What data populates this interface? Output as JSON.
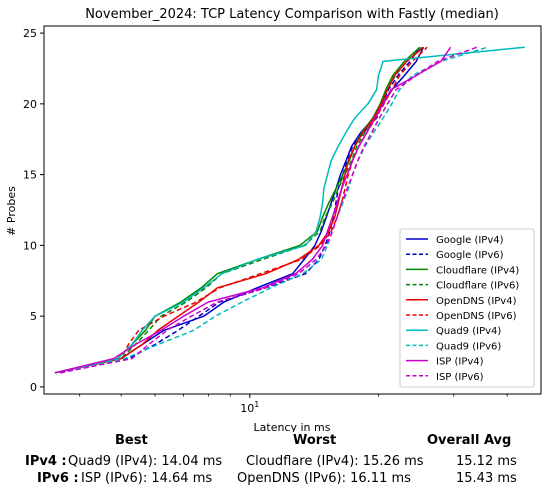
{
  "chart_data": {
    "type": "line",
    "title": "November_2024: TCP Latency Comparison with Fastly (median)",
    "xlabel": "Latency in ms",
    "ylabel": "# Probes",
    "xscale": "log",
    "xlim": [
      3.3,
      48
    ],
    "ylim": [
      -0.5,
      25.5
    ],
    "yticks": [
      0,
      5,
      10,
      15,
      20,
      25
    ],
    "xticks": [
      {
        "value": 10,
        "label": "10^1"
      }
    ],
    "legend_position": "lower right",
    "series": [
      {
        "name": "Google (IPv4)",
        "color": "#0000cc",
        "dash": false,
        "x": [
          3.5,
          5.0,
          5.6,
          6.3,
          7.8,
          8.7,
          10.4,
          12.6,
          13.4,
          14.2,
          14.7,
          15.1,
          15.5,
          15.9,
          16.3,
          16.8,
          17.3,
          18.2,
          19.5,
          20.5,
          21.5,
          23.0,
          24.5,
          25.5
        ],
        "y": [
          1,
          2,
          3,
          4,
          5,
          6,
          7,
          8,
          9,
          10,
          11,
          12,
          13,
          14,
          15,
          16,
          17,
          18,
          19,
          20,
          21,
          22,
          23,
          24
        ]
      },
      {
        "name": "Google (IPv6)",
        "color": "#0000cc",
        "dash": true,
        "x": [
          3.6,
          5.2,
          6.0,
          6.8,
          7.6,
          8.5,
          10.9,
          13.5,
          14.5,
          15.0,
          15.4,
          15.7,
          15.9,
          16.1,
          16.5,
          16.9,
          17.4,
          18.5,
          19.8,
          20.4,
          21.1,
          22.2,
          23.7,
          25.0
        ],
        "y": [
          1,
          2,
          3,
          4,
          5,
          6,
          7,
          8,
          9,
          10,
          11,
          12,
          13,
          14,
          15,
          16,
          17,
          18,
          19,
          20,
          21,
          22,
          23,
          24
        ]
      },
      {
        "name": "Cloudflare (IPv4)",
        "color": "#008800",
        "dash": false,
        "x": [
          3.5,
          4.9,
          5.3,
          5.7,
          6.0,
          6.9,
          7.7,
          8.4,
          10.4,
          13.1,
          14.4,
          14.8,
          15.3,
          15.9,
          16.5,
          17.1,
          17.6,
          18.3,
          19.4,
          20.2,
          20.8,
          21.6,
          23.0,
          25.0
        ],
        "y": [
          1,
          2,
          3,
          4,
          5,
          6,
          7,
          8,
          9,
          10,
          11,
          12,
          13,
          14,
          15,
          16,
          17,
          18,
          19,
          20,
          21,
          22,
          23,
          24
        ]
      },
      {
        "name": "Cloudflare (IPv6)",
        "color": "#008800",
        "dash": true,
        "x": [
          3.6,
          5.0,
          5.4,
          5.8,
          6.2,
          7.1,
          7.9,
          8.6,
          10.7,
          13.4,
          14.6,
          15.0,
          15.6,
          16.1,
          16.7,
          17.3,
          17.8,
          18.6,
          19.7,
          20.4,
          21.0,
          21.9,
          23.3,
          25.3
        ],
        "y": [
          1,
          2,
          3,
          4,
          5,
          6,
          7,
          8,
          9,
          10,
          11,
          12,
          13,
          14,
          15,
          16,
          17,
          18,
          19,
          20,
          21,
          22,
          23,
          24
        ]
      },
      {
        "name": "OpenDNS (IPv4)",
        "color": "#ee0000",
        "dash": false,
        "x": [
          3.5,
          5.0,
          5.6,
          6.1,
          6.8,
          7.6,
          8.4,
          10.9,
          13.0,
          14.5,
          15.3,
          15.8,
          16.1,
          16.4,
          16.7,
          17.0,
          17.6,
          18.4,
          19.5,
          20.3,
          21.0,
          21.8,
          23.3,
          25.5
        ],
        "y": [
          1,
          2,
          3,
          4,
          5,
          6,
          7,
          8,
          9,
          10,
          11,
          12,
          13,
          14,
          15,
          16,
          17,
          18,
          19,
          20,
          21,
          22,
          23,
          24
        ]
      },
      {
        "name": "OpenDNS (IPv6)",
        "color": "#ee0000",
        "dash": true,
        "x": [
          3.5,
          5.0,
          5.2,
          5.5,
          6.3,
          7.5,
          8.5,
          10.6,
          13.2,
          14.6,
          15.5,
          16.0,
          16.4,
          16.7,
          17.0,
          17.4,
          18.0,
          18.8,
          19.7,
          20.6,
          21.5,
          22.4,
          24.0,
          26.0
        ],
        "y": [
          1,
          2,
          3,
          4,
          5,
          6,
          7,
          8,
          9,
          10,
          11,
          12,
          13,
          14,
          15,
          16,
          17,
          18,
          19,
          20,
          21,
          22,
          23,
          24
        ]
      },
      {
        "name": "Quad9 (IPv4)",
        "color": "#00bbbb",
        "dash": false,
        "x": [
          3.5,
          4.9,
          5.3,
          5.6,
          6.0,
          7.0,
          7.8,
          8.6,
          10.4,
          13.5,
          14.3,
          14.6,
          14.8,
          14.9,
          15.2,
          15.5,
          16.1,
          16.8,
          17.6,
          18.9,
          19.8,
          20.0,
          20.5,
          44.0
        ],
        "y": [
          1,
          2,
          3,
          4,
          5,
          6,
          7,
          8,
          9,
          10,
          11,
          12,
          13,
          14,
          15,
          16,
          17,
          18,
          19,
          20,
          21,
          22,
          23,
          24
        ]
      },
      {
        "name": "Quad9 (IPv6)",
        "color": "#00bbbb",
        "dash": true,
        "x": [
          3.6,
          5.1,
          6.1,
          7.4,
          8.3,
          9.6,
          11.2,
          13.3,
          14.7,
          15.2,
          15.6,
          16.0,
          16.5,
          17.0,
          17.4,
          17.9,
          18.6,
          19.5,
          20.5,
          21.5,
          22.4,
          24.0,
          28.0,
          36.0
        ],
        "y": [
          1,
          2,
          3,
          4,
          5,
          6,
          7,
          8,
          9,
          10,
          11,
          12,
          13,
          14,
          15,
          16,
          17,
          18,
          19,
          20,
          21,
          22,
          23,
          24
        ]
      },
      {
        "name": "ISP (IPv4)",
        "color": "#cc00cc",
        "dash": false,
        "x": [
          3.5,
          4.8,
          5.4,
          6.2,
          7.0,
          8.0,
          10.7,
          12.8,
          14.0,
          14.8,
          15.2,
          15.6,
          16.0,
          16.4,
          16.9,
          17.4,
          18.0,
          18.8,
          19.6,
          20.5,
          21.4,
          24.5,
          28.0,
          29.5
        ],
        "y": [
          1,
          2,
          3,
          4,
          5,
          6,
          7,
          8,
          9,
          10,
          11,
          12,
          13,
          14,
          15,
          16,
          17,
          18,
          19,
          20,
          21,
          22,
          23,
          24
        ]
      },
      {
        "name": "ISP (IPv6)",
        "color": "#cc00cc",
        "dash": true,
        "x": [
          3.6,
          5.3,
          5.8,
          6.4,
          7.3,
          8.4,
          10.9,
          13.0,
          14.3,
          15.1,
          15.6,
          16.0,
          16.4,
          16.9,
          17.4,
          17.9,
          18.5,
          19.3,
          20.1,
          21.0,
          22.0,
          24.5,
          27.5,
          34.0
        ],
        "y": [
          1,
          2,
          3,
          4,
          5,
          6,
          7,
          8,
          9,
          10,
          11,
          12,
          13,
          14,
          15,
          16,
          17,
          18,
          19,
          20,
          21,
          22,
          23,
          24
        ]
      }
    ]
  },
  "summary": {
    "headers": {
      "best": "Best",
      "worst": "Worst",
      "avg": "Overall Avg"
    },
    "rows": [
      {
        "label": "IPv4 :",
        "best": "Quad9 (IPv4): 14.04 ms",
        "worst": "Cloudflare (IPv4): 15.26 ms",
        "avg": "15.12 ms"
      },
      {
        "label": "IPv6 :",
        "best": "ISP (IPv6): 14.64 ms",
        "worst": "OpenDNS (IPv6): 16.11 ms",
        "avg": "15.43 ms"
      }
    ]
  }
}
